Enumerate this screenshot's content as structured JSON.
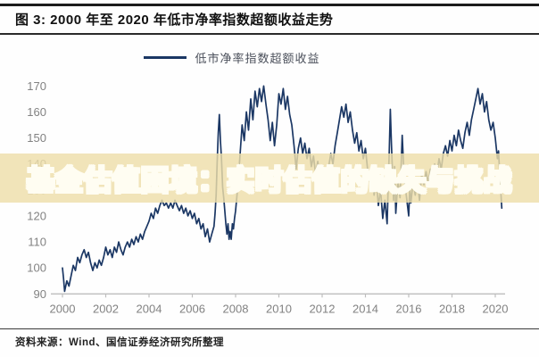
{
  "header": {
    "title": "图 3: 2000 年至 2020 年低市净率指数超额收益走势"
  },
  "legend": {
    "label": "低市净率指数超额收益",
    "line_color": "#1b3764"
  },
  "watermark": {
    "text": "基金估值困境：实时估值的缺失与挑战",
    "red": "#e23b2e",
    "white": "#fdf6e0",
    "band_color": "rgba(238,222,170,0.82)"
  },
  "footer": {
    "source": "资料来源：Wind、国信证券经济研究所整理"
  },
  "chart_data": {
    "type": "line",
    "title": "图 3: 2000 年至 2020 年低市净率指数超额收益走势",
    "xlabel": "",
    "ylabel": "",
    "xlim": [
      2000,
      2020.5
    ],
    "ylim": [
      90,
      170
    ],
    "grid": false,
    "legend_position": "top-center",
    "x_ticks": [
      2000,
      2002,
      2004,
      2006,
      2008,
      2010,
      2012,
      2014,
      2016,
      2018,
      2020
    ],
    "y_ticks": [
      90,
      100,
      110,
      120,
      130,
      140,
      150,
      160,
      170
    ],
    "axis_color": "#bdbdbd",
    "tick_label_color": "#828282",
    "series": [
      {
        "name": "低市净率指数超额收益",
        "color": "#1b3764",
        "points": [
          [
            2000.0,
            100
          ],
          [
            2000.05,
            96
          ],
          [
            2000.1,
            91
          ],
          [
            2000.2,
            95
          ],
          [
            2000.3,
            93
          ],
          [
            2000.4,
            97
          ],
          [
            2000.5,
            101
          ],
          [
            2000.6,
            99
          ],
          [
            2000.7,
            104
          ],
          [
            2000.8,
            102
          ],
          [
            2000.9,
            105
          ],
          [
            2001.0,
            107
          ],
          [
            2001.1,
            104
          ],
          [
            2001.2,
            106
          ],
          [
            2001.3,
            102
          ],
          [
            2001.4,
            99
          ],
          [
            2001.5,
            102
          ],
          [
            2001.6,
            100
          ],
          [
            2001.7,
            103
          ],
          [
            2001.8,
            101
          ],
          [
            2001.9,
            104
          ],
          [
            2002.0,
            108
          ],
          [
            2002.1,
            105
          ],
          [
            2002.2,
            107
          ],
          [
            2002.3,
            104
          ],
          [
            2002.4,
            108
          ],
          [
            2002.5,
            106
          ],
          [
            2002.6,
            110
          ],
          [
            2002.7,
            107
          ],
          [
            2002.8,
            105
          ],
          [
            2002.9,
            108
          ],
          [
            2003.0,
            110
          ],
          [
            2003.1,
            108
          ],
          [
            2003.2,
            111
          ],
          [
            2003.3,
            109
          ],
          [
            2003.4,
            112
          ],
          [
            2003.5,
            110
          ],
          [
            2003.6,
            113
          ],
          [
            2003.7,
            111
          ],
          [
            2003.8,
            114
          ],
          [
            2003.9,
            116
          ],
          [
            2004.0,
            118
          ],
          [
            2004.1,
            121
          ],
          [
            2004.2,
            119
          ],
          [
            2004.3,
            123
          ],
          [
            2004.4,
            121
          ],
          [
            2004.5,
            124
          ],
          [
            2004.6,
            126
          ],
          [
            2004.7,
            124
          ],
          [
            2004.8,
            125
          ],
          [
            2004.9,
            123
          ],
          [
            2005.0,
            125
          ],
          [
            2005.1,
            123
          ],
          [
            2005.2,
            126
          ],
          [
            2005.3,
            124
          ],
          [
            2005.4,
            122
          ],
          [
            2005.5,
            124
          ],
          [
            2005.6,
            121
          ],
          [
            2005.7,
            123
          ],
          [
            2005.8,
            120
          ],
          [
            2005.9,
            122
          ],
          [
            2006.0,
            119
          ],
          [
            2006.1,
            121
          ],
          [
            2006.2,
            117
          ],
          [
            2006.3,
            119
          ],
          [
            2006.4,
            115
          ],
          [
            2006.5,
            117
          ],
          [
            2006.6,
            112
          ],
          [
            2006.7,
            115
          ],
          [
            2006.8,
            110
          ],
          [
            2006.9,
            113
          ],
          [
            2007.0,
            116
          ],
          [
            2007.05,
            121
          ],
          [
            2007.1,
            128
          ],
          [
            2007.15,
            141
          ],
          [
            2007.2,
            152
          ],
          [
            2007.25,
            159
          ],
          [
            2007.3,
            149
          ],
          [
            2007.35,
            142
          ],
          [
            2007.4,
            131
          ],
          [
            2007.45,
            127
          ],
          [
            2007.5,
            122
          ],
          [
            2007.55,
            117
          ],
          [
            2007.6,
            113
          ],
          [
            2007.65,
            117
          ],
          [
            2007.7,
            111
          ],
          [
            2007.75,
            114
          ],
          [
            2007.8,
            111
          ],
          [
            2007.85,
            117
          ],
          [
            2007.9,
            115
          ],
          [
            2007.95,
            119
          ],
          [
            2008.0,
            122
          ],
          [
            2008.1,
            131
          ],
          [
            2008.2,
            143
          ],
          [
            2008.3,
            155
          ],
          [
            2008.4,
            149
          ],
          [
            2008.5,
            160
          ],
          [
            2008.6,
            153
          ],
          [
            2008.7,
            165
          ],
          [
            2008.8,
            157
          ],
          [
            2008.9,
            168
          ],
          [
            2009.0,
            162
          ],
          [
            2009.1,
            169
          ],
          [
            2009.2,
            164
          ],
          [
            2009.3,
            170
          ],
          [
            2009.4,
            163
          ],
          [
            2009.5,
            157
          ],
          [
            2009.6,
            149
          ],
          [
            2009.7,
            156
          ],
          [
            2009.8,
            147
          ],
          [
            2009.9,
            155
          ],
          [
            2010.0,
            167
          ],
          [
            2010.1,
            163
          ],
          [
            2010.2,
            169
          ],
          [
            2010.3,
            161
          ],
          [
            2010.4,
            166
          ],
          [
            2010.5,
            159
          ],
          [
            2010.6,
            155
          ],
          [
            2010.7,
            147
          ],
          [
            2010.8,
            138
          ],
          [
            2010.9,
            146
          ],
          [
            2011.0,
            150
          ],
          [
            2011.1,
            144
          ],
          [
            2011.2,
            148
          ],
          [
            2011.3,
            142
          ],
          [
            2011.4,
            146
          ],
          [
            2011.5,
            139
          ],
          [
            2011.6,
            143
          ],
          [
            2011.7,
            136
          ],
          [
            2011.8,
            141
          ],
          [
            2011.9,
            134
          ],
          [
            2012.0,
            130
          ],
          [
            2012.1,
            136
          ],
          [
            2012.2,
            132
          ],
          [
            2012.3,
            139
          ],
          [
            2012.4,
            144
          ],
          [
            2012.5,
            140
          ],
          [
            2012.6,
            147
          ],
          [
            2012.7,
            152
          ],
          [
            2012.8,
            157
          ],
          [
            2012.9,
            162
          ],
          [
            2013.0,
            158
          ],
          [
            2013.1,
            163
          ],
          [
            2013.2,
            156
          ],
          [
            2013.3,
            160
          ],
          [
            2013.4,
            153
          ],
          [
            2013.5,
            148
          ],
          [
            2013.6,
            152
          ],
          [
            2013.7,
            145
          ],
          [
            2013.8,
            149
          ],
          [
            2013.9,
            142
          ],
          [
            2014.0,
            146
          ],
          [
            2014.1,
            138
          ],
          [
            2014.2,
            133
          ],
          [
            2014.3,
            139
          ],
          [
            2014.4,
            128
          ],
          [
            2014.5,
            134
          ],
          [
            2014.6,
            124
          ],
          [
            2014.7,
            130
          ],
          [
            2014.8,
            119
          ],
          [
            2014.9,
            126
          ],
          [
            2015.0,
            117
          ],
          [
            2015.05,
            131
          ],
          [
            2015.1,
            145
          ],
          [
            2015.15,
            161
          ],
          [
            2015.2,
            148
          ],
          [
            2015.25,
            137
          ],
          [
            2015.3,
            126
          ],
          [
            2015.35,
            139
          ],
          [
            2015.4,
            121
          ],
          [
            2015.5,
            133
          ],
          [
            2015.6,
            127
          ],
          [
            2015.7,
            151
          ],
          [
            2015.75,
            142
          ],
          [
            2015.8,
            134
          ],
          [
            2015.9,
            127
          ],
          [
            2016.0,
            120
          ],
          [
            2016.05,
            131
          ],
          [
            2016.1,
            125
          ],
          [
            2016.2,
            133
          ],
          [
            2016.3,
            128
          ],
          [
            2016.4,
            134
          ],
          [
            2016.5,
            126
          ],
          [
            2016.6,
            136
          ],
          [
            2016.7,
            132
          ],
          [
            2016.8,
            137
          ],
          [
            2016.9,
            133
          ],
          [
            2017.0,
            138
          ],
          [
            2017.1,
            134
          ],
          [
            2017.2,
            140
          ],
          [
            2017.3,
            136
          ],
          [
            2017.4,
            142
          ],
          [
            2017.5,
            138
          ],
          [
            2017.6,
            144
          ],
          [
            2017.7,
            147
          ],
          [
            2017.8,
            143
          ],
          [
            2017.9,
            149
          ],
          [
            2018.0,
            145
          ],
          [
            2018.1,
            151
          ],
          [
            2018.2,
            147
          ],
          [
            2018.3,
            153
          ],
          [
            2018.4,
            149
          ],
          [
            2018.5,
            146
          ],
          [
            2018.6,
            152
          ],
          [
            2018.7,
            156
          ],
          [
            2018.8,
            151
          ],
          [
            2018.9,
            157
          ],
          [
            2019.0,
            161
          ],
          [
            2019.1,
            165
          ],
          [
            2019.2,
            169
          ],
          [
            2019.3,
            163
          ],
          [
            2019.4,
            167
          ],
          [
            2019.5,
            160
          ],
          [
            2019.6,
            164
          ],
          [
            2019.7,
            157
          ],
          [
            2019.8,
            153
          ],
          [
            2019.9,
            156
          ],
          [
            2020.0,
            150
          ],
          [
            2020.05,
            146
          ],
          [
            2020.1,
            142
          ],
          [
            2020.15,
            145
          ],
          [
            2020.2,
            137
          ],
          [
            2020.25,
            130
          ],
          [
            2020.3,
            123
          ]
        ]
      }
    ]
  }
}
